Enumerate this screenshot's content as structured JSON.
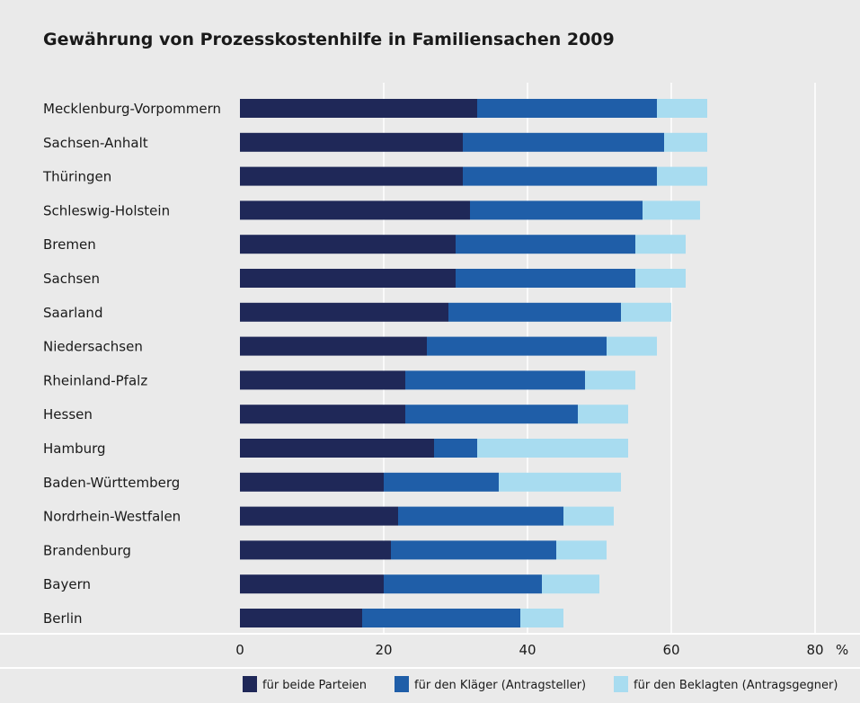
{
  "chart_data": {
    "type": "bar",
    "orientation": "horizontal",
    "stacked": true,
    "title": "Gewährung von Prozesskostenhilfe in Familiensachen 2009",
    "unit_label": "%",
    "xlim": [
      0,
      80
    ],
    "x_ticks": [
      "0",
      "20",
      "40",
      "60",
      "80"
    ],
    "grid": true,
    "legend_position": "bottom",
    "categories": [
      "Mecklenburg-Vorpommern",
      "Sachsen-Anhalt",
      "Thüringen",
      "Schleswig-Holstein",
      "Bremen",
      "Sachsen",
      "Saarland",
      "Niedersachsen",
      "Rheinland-Pfalz",
      "Hessen",
      "Hamburg",
      "Baden-Württemberg",
      "Nordrhein-Westfalen",
      "Brandenburg",
      "Bayern",
      "Berlin"
    ],
    "series": [
      {
        "name": "für beide Parteien",
        "color": "#1f2858",
        "values": [
          33,
          31,
          31,
          32,
          30,
          30,
          29,
          26,
          23,
          23,
          27,
          20,
          22,
          21,
          20,
          17
        ]
      },
      {
        "name": "für den Kläger (Antragsteller)",
        "color": "#1f5ea8",
        "values": [
          25,
          28,
          27,
          24,
          25,
          25,
          24,
          25,
          25,
          24,
          6,
          16,
          23,
          23,
          22,
          22
        ]
      },
      {
        "name": "für den Beklagten (Antragsgegner)",
        "color": "#a8dcf0",
        "values": [
          7,
          6,
          7,
          8,
          7,
          7,
          7,
          7,
          7,
          7,
          21,
          17,
          7,
          7,
          8,
          6
        ]
      }
    ]
  }
}
